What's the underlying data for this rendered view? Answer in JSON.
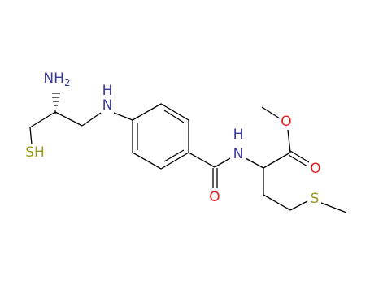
{
  "atoms": [
    {
      "label": "NH",
      "sub": "2"
    },
    {
      "label": "SH"
    },
    {
      "label": "N",
      "h": "H"
    },
    {
      "label": "N",
      "h": "H"
    },
    {
      "label": "O"
    },
    {
      "label": "O"
    },
    {
      "label": "O"
    },
    {
      "label": "S"
    }
  ]
}
